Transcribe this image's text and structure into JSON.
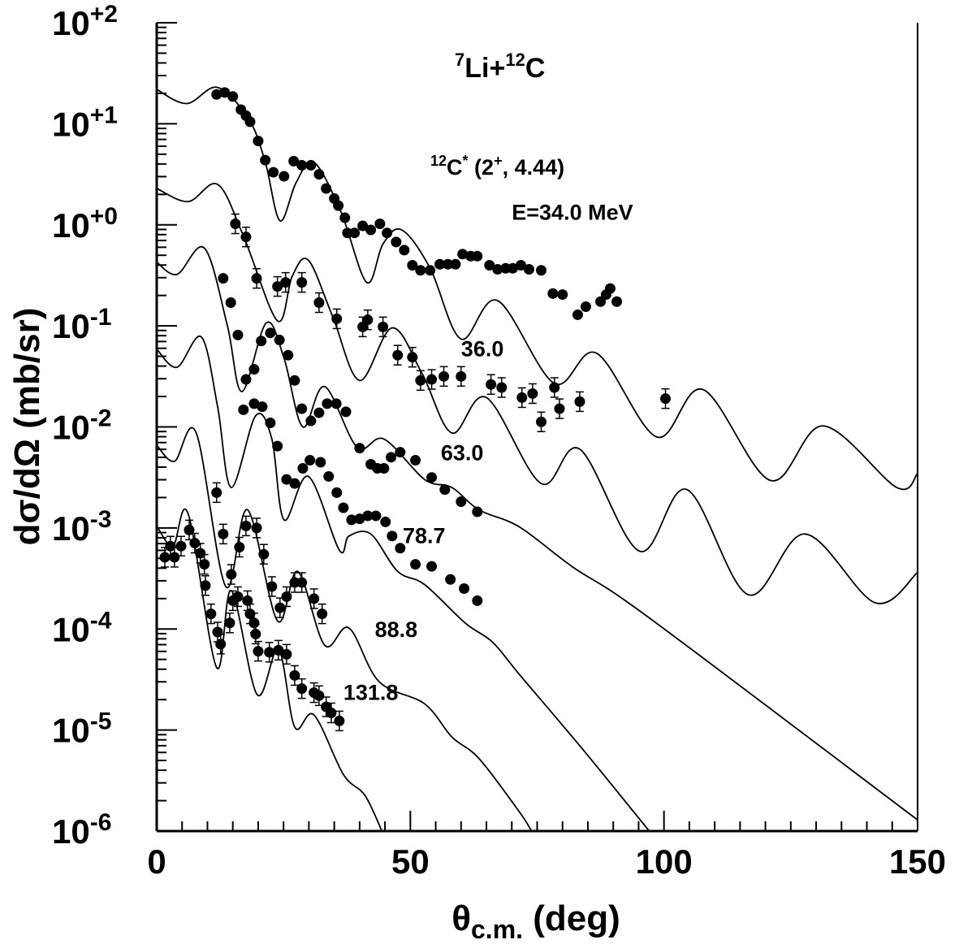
{
  "chart_data": {
    "type": "scatter",
    "title": "7Li+12C",
    "title_parts": {
      "a_sup": "7",
      "a": "Li+",
      "b_sup": "12",
      "b": "C"
    },
    "subtitle_parts": {
      "sup": "12",
      "main": "C",
      "star": "*",
      "rest": " (2",
      "plus": "+",
      "end": ", 4.44)"
    },
    "xlabel_parts": {
      "theta": "θ",
      "sub": "c.m.",
      "rest": " (deg)"
    },
    "ylabel": "dσ/dΩ (mb/sr)",
    "xlim": [
      0,
      150
    ],
    "ylim_log10": [
      -6,
      2
    ],
    "yscale": "log",
    "xticks": [
      "0",
      "50",
      "100",
      "150"
    ],
    "xtick_values": [
      0,
      50,
      100,
      150
    ],
    "yticks": [
      {
        "base": "10",
        "exp": "+2",
        "log": 2
      },
      {
        "base": "10",
        "exp": "+1",
        "log": 1
      },
      {
        "base": "10",
        "exp": "+0",
        "log": 0
      },
      {
        "base": "10",
        "exp": "-1",
        "log": -1
      },
      {
        "base": "10",
        "exp": "-2",
        "log": -2
      },
      {
        "base": "10",
        "exp": "-3",
        "log": -3
      },
      {
        "base": "10",
        "exp": "-4",
        "log": -4
      },
      {
        "base": "10",
        "exp": "-5",
        "log": -5
      },
      {
        "base": "10",
        "exp": "-6",
        "log": -6
      }
    ],
    "point_format": "[theta_deg, log10(dsigma/dOmega)]",
    "series": [
      {
        "name": "E=34.0 MeV",
        "label": "E=34.0 MeV",
        "label_at": [
          70,
          0.05
        ],
        "errorbars": false,
        "data": [
          [
            11.8,
            1.29
          ],
          [
            13.4,
            1.31
          ],
          [
            15,
            1.27
          ],
          [
            16.6,
            1.14
          ],
          [
            17.6,
            1.08
          ],
          [
            18.4,
            1.02
          ],
          [
            20,
            0.83
          ],
          [
            21.4,
            0.64
          ],
          [
            23,
            0.52
          ],
          [
            25.1,
            0.48
          ],
          [
            27,
            0.63
          ],
          [
            28.6,
            0.59
          ],
          [
            30.4,
            0.59
          ],
          [
            32,
            0.5
          ],
          [
            33.4,
            0.36
          ],
          [
            35,
            0.26
          ],
          [
            35.8,
            0.19
          ],
          [
            37.1,
            0.07
          ],
          [
            37.6,
            -0.08
          ],
          [
            39,
            -0.08
          ],
          [
            40.6,
            -0.01
          ],
          [
            42.2,
            -0.05
          ],
          [
            44,
            0.01
          ],
          [
            45.4,
            -0.08
          ],
          [
            47.2,
            -0.17
          ],
          [
            48.8,
            -0.25
          ],
          [
            50.4,
            -0.4
          ],
          [
            52,
            -0.45
          ],
          [
            53.9,
            -0.45
          ],
          [
            55.8,
            -0.39
          ],
          [
            57.4,
            -0.39
          ],
          [
            58.9,
            -0.39
          ],
          [
            60.3,
            -0.29
          ],
          [
            61.9,
            -0.31
          ],
          [
            63.2,
            -0.31
          ],
          [
            65.6,
            -0.4
          ],
          [
            67.2,
            -0.44
          ],
          [
            68.8,
            -0.43
          ],
          [
            70.2,
            -0.43
          ],
          [
            71.8,
            -0.4
          ],
          [
            73.4,
            -0.44
          ],
          [
            75.8,
            -0.45
          ],
          [
            78.1,
            -0.68
          ],
          [
            80,
            -0.69
          ],
          [
            83,
            -0.89
          ],
          [
            84.6,
            -0.81
          ],
          [
            87.5,
            -0.76
          ],
          [
            88.6,
            -0.69
          ],
          [
            89.4,
            -0.63
          ],
          [
            90.7,
            -0.76
          ]
        ],
        "curve": [
          [
            0,
            1.34
          ],
          [
            5.9,
            1.2
          ],
          [
            12,
            1.36
          ],
          [
            18.2,
            1.04
          ],
          [
            21.4,
            0.62
          ],
          [
            24.3,
            0.04
          ],
          [
            27.5,
            0.42
          ],
          [
            31,
            0.62
          ],
          [
            36.3,
            0.13
          ],
          [
            41.4,
            -0.57
          ],
          [
            44.6,
            -0.19
          ],
          [
            48.3,
            -0.05
          ],
          [
            53.9,
            -0.43
          ],
          [
            60,
            -1.13
          ],
          [
            67.2,
            -0.75
          ],
          [
            78.4,
            -1.57
          ],
          [
            86.7,
            -1.27
          ],
          [
            98.6,
            -2.1
          ],
          [
            107.7,
            -1.63
          ],
          [
            121,
            -2.53
          ],
          [
            131.4,
            -1.99
          ],
          [
            145.9,
            -2.6
          ],
          [
            150,
            -2.46
          ]
        ]
      },
      {
        "name": "36.0",
        "label": "36.0",
        "label_at": [
          60,
          -1.3
        ],
        "errorbars": true,
        "data": [
          [
            15.5,
            0.01
          ],
          [
            17.6,
            -0.12
          ],
          [
            19.7,
            -0.53
          ],
          [
            23.8,
            -0.61
          ],
          [
            25.4,
            -0.57
          ],
          [
            28.6,
            -0.57
          ],
          [
            32,
            -0.77
          ],
          [
            35.5,
            -0.93
          ],
          [
            40.6,
            -1.01
          ],
          [
            41.6,
            -0.94
          ],
          [
            44.6,
            -1.01
          ],
          [
            47.5,
            -1.29
          ],
          [
            50.4,
            -1.31
          ],
          [
            52,
            -1.54
          ],
          [
            54.2,
            -1.53
          ],
          [
            56.6,
            -1.5
          ],
          [
            60,
            -1.5
          ],
          [
            65.9,
            -1.58
          ],
          [
            68,
            -1.61
          ],
          [
            72,
            -1.71
          ],
          [
            74.1,
            -1.67
          ],
          [
            75.8,
            -1.95
          ],
          [
            78.4,
            -1.61
          ],
          [
            79.4,
            -1.82
          ],
          [
            83.4,
            -1.75
          ],
          [
            100.3,
            -1.72
          ]
        ],
        "curve": [
          [
            0,
            0.36
          ],
          [
            6.2,
            0.23
          ],
          [
            12,
            0.4
          ],
          [
            17.1,
            -0.11
          ],
          [
            23.8,
            -0.95
          ],
          [
            26.7,
            -0.51
          ],
          [
            29.9,
            -0.35
          ],
          [
            34.7,
            -0.91
          ],
          [
            40,
            -1.54
          ],
          [
            46.4,
            -1.02
          ],
          [
            52.3,
            -1.47
          ],
          [
            58.2,
            -2.06
          ],
          [
            65,
            -1.71
          ],
          [
            75.8,
            -2.56
          ],
          [
            83.4,
            -2.22
          ],
          [
            95.2,
            -3.23
          ],
          [
            104.5,
            -2.62
          ],
          [
            116.6,
            -3.66
          ],
          [
            127.8,
            -3.06
          ],
          [
            141.6,
            -3.74
          ],
          [
            150,
            -3.44
          ]
        ]
      },
      {
        "name": "63.0",
        "label": "63.0",
        "label_at": [
          56,
          -2.33
        ],
        "errorbars": false,
        "data": [
          [
            13.1,
            -0.53
          ],
          [
            14.6,
            -0.77
          ],
          [
            16,
            -1.09
          ],
          [
            17.6,
            -1.53
          ],
          [
            19.2,
            -1.43
          ],
          [
            20.6,
            -1.15
          ],
          [
            22.4,
            -1.07
          ],
          [
            24.2,
            -1.14
          ],
          [
            25.9,
            -1.29
          ],
          [
            27.2,
            -1.54
          ],
          [
            28.6,
            -1.82
          ],
          [
            30.4,
            -1.94
          ],
          [
            32,
            -1.86
          ],
          [
            33.6,
            -1.77
          ],
          [
            35.4,
            -1.77
          ],
          [
            37.3,
            -1.85
          ],
          [
            40,
            -2.21
          ],
          [
            42.2,
            -2.37
          ],
          [
            43.5,
            -2.41
          ],
          [
            44.8,
            -2.41
          ],
          [
            46.2,
            -2.3
          ],
          [
            48,
            -2.25
          ],
          [
            51,
            -2.33
          ],
          [
            54.2,
            -2.5
          ],
          [
            56.8,
            -2.62
          ],
          [
            60,
            -2.74
          ],
          [
            63.2,
            -2.84
          ]
        ],
        "curve": [
          [
            0,
            -0.37
          ],
          [
            4,
            -0.49
          ],
          [
            9.4,
            -0.23
          ],
          [
            13.9,
            -0.99
          ],
          [
            16.8,
            -1.65
          ],
          [
            21.6,
            -0.97
          ],
          [
            25.1,
            -1.32
          ],
          [
            28.8,
            -2
          ],
          [
            33.1,
            -1.6
          ],
          [
            39.5,
            -2.2
          ],
          [
            44.8,
            -2.12
          ],
          [
            52.8,
            -2.52
          ],
          [
            58.2,
            -2.6
          ],
          [
            63.5,
            -2.82
          ],
          [
            71.5,
            -2.99
          ],
          [
            82.1,
            -3.39
          ],
          [
            97.1,
            -3.89
          ],
          [
            150,
            -5.89
          ]
        ]
      },
      {
        "name": "78.7",
        "label": "78.7",
        "label_at": [
          48.5,
          -3.15
        ],
        "errorbars": false,
        "data": [
          [
            17.1,
            -1.83
          ],
          [
            19.2,
            -1.77
          ],
          [
            20.8,
            -1.8
          ],
          [
            22.4,
            -1.96
          ],
          [
            23.8,
            -2.19
          ],
          [
            25.6,
            -2.52
          ],
          [
            27.2,
            -2.56
          ],
          [
            28.8,
            -2.41
          ],
          [
            30.2,
            -2.33
          ],
          [
            32.3,
            -2.35
          ],
          [
            33.9,
            -2.49
          ],
          [
            35.5,
            -2.65
          ],
          [
            36.8,
            -2.8
          ],
          [
            38.4,
            -2.92
          ],
          [
            40,
            -2.91
          ],
          [
            41.6,
            -2.88
          ],
          [
            43.2,
            -2.88
          ],
          [
            45.1,
            -2.94
          ],
          [
            46.4,
            -3.08
          ],
          [
            48,
            -3.2
          ],
          [
            51,
            -3.36
          ],
          [
            54.2,
            -3.38
          ],
          [
            57.9,
            -3.51
          ],
          [
            60.6,
            -3.6
          ],
          [
            63.2,
            -3.72
          ]
        ],
        "curve": [
          [
            0,
            -1.23
          ],
          [
            4,
            -1.41
          ],
          [
            8.8,
            -1.11
          ],
          [
            12,
            -1.8
          ],
          [
            14.7,
            -2.6
          ],
          [
            19.5,
            -1.89
          ],
          [
            22.7,
            -2.12
          ],
          [
            25.1,
            -2.92
          ],
          [
            29.9,
            -2.49
          ],
          [
            36,
            -3.22
          ],
          [
            37.9,
            -3.08
          ],
          [
            42.2,
            -3.06
          ],
          [
            47.5,
            -3.43
          ],
          [
            52.8,
            -3.56
          ],
          [
            60.8,
            -3.94
          ],
          [
            66.2,
            -4.13
          ],
          [
            71.5,
            -4.45
          ],
          [
            84.3,
            -5.21
          ],
          [
            97.1,
            -6
          ]
        ]
      },
      {
        "name": "88.8",
        "label": "88.8",
        "label_at": [
          43,
          -4.08
        ],
        "errorbars": true,
        "data": [
          [
            11.8,
            -2.65
          ],
          [
            13.1,
            -3.06
          ],
          [
            14.7,
            -3.46
          ],
          [
            16.3,
            -3.19
          ],
          [
            17.6,
            -2.98
          ],
          [
            19.7,
            -3
          ],
          [
            21.1,
            -3.26
          ],
          [
            22.7,
            -3.58
          ],
          [
            24.3,
            -3.79
          ],
          [
            25.6,
            -3.68
          ],
          [
            27.2,
            -3.54
          ],
          [
            28.6,
            -3.54
          ],
          [
            31,
            -3.7
          ],
          [
            32.6,
            -3.85
          ]
        ],
        "curve": [
          [
            0,
            -2.18
          ],
          [
            3.5,
            -2.34
          ],
          [
            7.8,
            -2.06
          ],
          [
            13.6,
            -3.58
          ],
          [
            17.9,
            -2.82
          ],
          [
            23.8,
            -3.92
          ],
          [
            27.8,
            -3.43
          ],
          [
            33.1,
            -4.16
          ],
          [
            37.9,
            -3.99
          ],
          [
            43.8,
            -4.52
          ],
          [
            52.8,
            -4.74
          ],
          [
            58.2,
            -5.07
          ],
          [
            63.5,
            -5.28
          ],
          [
            71.5,
            -5.81
          ],
          [
            73.9,
            -6
          ]
        ]
      },
      {
        "name": "131.8",
        "label": "131.8",
        "label_at": [
          36.8,
          -4.7
        ],
        "errorbars": true,
        "data": [
          [
            1.6,
            -3.29
          ],
          [
            2.7,
            -3.18
          ],
          [
            3.5,
            -3.29
          ],
          [
            4.8,
            -3.18
          ],
          [
            6.4,
            -3.02
          ],
          [
            7.5,
            -3.15
          ],
          [
            8.6,
            -3.25
          ],
          [
            9.4,
            -3.36
          ],
          [
            9.6,
            -3.57
          ],
          [
            10.7,
            -3.85
          ],
          [
            12,
            -4.03
          ],
          [
            12.6,
            -4.15
          ],
          [
            14.4,
            -3.94
          ],
          [
            15,
            -3.72
          ],
          [
            16,
            -3.68
          ],
          [
            17.9,
            -3.72
          ],
          [
            18.4,
            -3.85
          ],
          [
            19.2,
            -3.94
          ],
          [
            19.5,
            -4.05
          ],
          [
            20,
            -4.22
          ],
          [
            22.2,
            -4.23
          ],
          [
            24,
            -4.21
          ],
          [
            25.6,
            -4.25
          ],
          [
            27.2,
            -4.46
          ],
          [
            28.6,
            -4.59
          ],
          [
            31,
            -4.63
          ],
          [
            32,
            -4.66
          ],
          [
            33.4,
            -4.77
          ],
          [
            34.4,
            -4.83
          ],
          [
            36,
            -4.91
          ]
        ],
        "curve": [
          [
            0,
            -2.98
          ],
          [
            3.2,
            -3.18
          ],
          [
            6.2,
            -2.86
          ],
          [
            11.8,
            -4.38
          ],
          [
            14.7,
            -3.62
          ],
          [
            19.8,
            -4.65
          ],
          [
            24,
            -4.2
          ],
          [
            27.2,
            -4.97
          ],
          [
            31,
            -4.85
          ],
          [
            36.8,
            -5.44
          ],
          [
            41.1,
            -5.65
          ],
          [
            44.8,
            -6.05
          ]
        ]
      }
    ],
    "colors": {
      "ink": "#000000",
      "background": "#ffffff"
    }
  }
}
